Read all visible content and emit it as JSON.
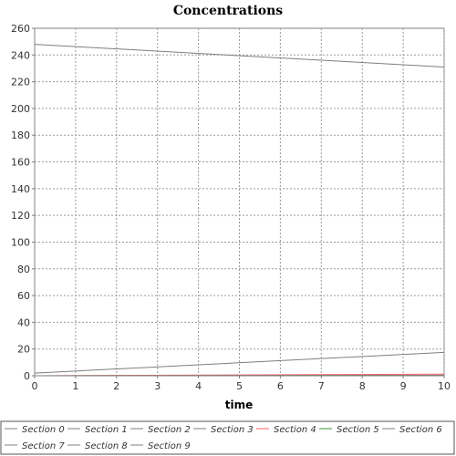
{
  "chart_data": {
    "type": "line",
    "title": "Concentrations",
    "xlabel": "time",
    "ylabel": "",
    "xlim": [
      0,
      10
    ],
    "ylim": [
      0,
      260
    ],
    "xticks": [
      0,
      1,
      2,
      3,
      4,
      5,
      6,
      7,
      8,
      9,
      10
    ],
    "yticks": [
      0,
      20,
      40,
      60,
      80,
      100,
      120,
      140,
      160,
      180,
      200,
      220,
      240,
      260
    ],
    "grid": true,
    "legend_position": "bottom",
    "x": [
      0,
      10
    ],
    "series": [
      {
        "name": "Section 0",
        "color": "#7f7f7f",
        "values": [
          248,
          231
        ]
      },
      {
        "name": "Section 1",
        "color": "#7f7f7f",
        "values": [
          2,
          17.5
        ]
      },
      {
        "name": "Section 2",
        "color": "#7f7f7f",
        "values": [
          0,
          0.3
        ]
      },
      {
        "name": "Section 3",
        "color": "#7f7f7f",
        "values": [
          0,
          0.2
        ]
      },
      {
        "name": "Section 4",
        "color": "#ff6060",
        "values": [
          0,
          1.2
        ]
      },
      {
        "name": "Section 5",
        "color": "#3a9a3a",
        "values": [
          0,
          0.4
        ]
      },
      {
        "name": "Section 6",
        "color": "#7f7f7f",
        "values": [
          0,
          0.1
        ]
      },
      {
        "name": "Section 7",
        "color": "#7f7f7f",
        "values": [
          0,
          0.1
        ]
      },
      {
        "name": "Section 8",
        "color": "#7f7f7f",
        "values": [
          0,
          0.1
        ]
      },
      {
        "name": "Section 9",
        "color": "#7f7f7f",
        "values": [
          0,
          0.1
        ]
      }
    ]
  }
}
